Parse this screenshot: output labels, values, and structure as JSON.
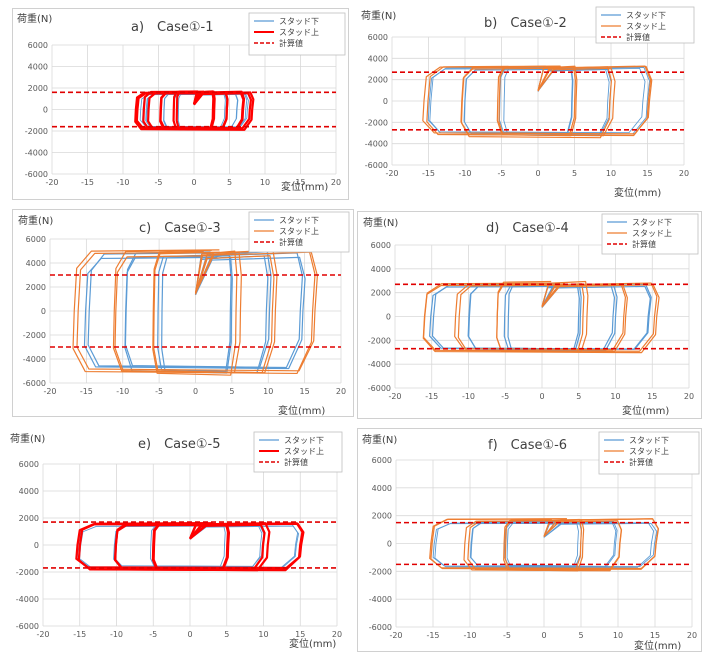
{
  "chart_data": [
    {
      "type": "line",
      "title": "a)　Case①-1",
      "ylabel": "荷重(N)",
      "xlabel": "変位(mm)",
      "xlim": [
        -20,
        20
      ],
      "ylim": [
        -6000,
        6000
      ],
      "xticks": [
        -20,
        -15,
        -10,
        -5,
        0,
        5,
        10,
        15,
        20
      ],
      "yticks": [
        -6000,
        -4000,
        -2000,
        0,
        2000,
        4000,
        6000
      ],
      "grid": true,
      "legend_position": "top-right",
      "colors": {
        "lower": "#5b9bd5",
        "upper": "#ff0000",
        "calc": "#e00000"
      },
      "series": [
        {
          "name": "スタッド下",
          "color": "#5b9bd5",
          "style": "thin",
          "cycles": [
            2.5,
            4.5,
            6.5,
            7.5
          ],
          "y_top": 1550,
          "y_bot": -1750
        },
        {
          "name": "スタッド上",
          "color": "#ff0000",
          "style": "thick",
          "cycles": [
            2.8,
            4.8,
            6.8,
            8.2
          ],
          "y_top": 1650,
          "y_bot": -1850
        },
        {
          "name": "計算値",
          "color": "#e00000",
          "style": "dashed",
          "levels": [
            1600,
            -1600
          ]
        }
      ]
    },
    {
      "type": "line",
      "title": "b)　Case①-2",
      "ylabel": "荷重(N)",
      "xlabel": "変位(mm)",
      "xlim": [
        -20,
        20
      ],
      "ylim": [
        -6000,
        6000
      ],
      "xticks": [
        -20,
        -15,
        -10,
        -5,
        0,
        5,
        10,
        15,
        20
      ],
      "yticks": [
        -6000,
        -4000,
        -2000,
        0,
        2000,
        4000,
        6000
      ],
      "grid": true,
      "legend_position": "top-right",
      "colors": {
        "lower": "#5b9bd5",
        "upper": "#ed7d31",
        "calc": "#e00000"
      },
      "series": [
        {
          "name": "スタッド下",
          "color": "#5b9bd5",
          "style": "thin",
          "cycles": [
            5,
            10,
            15
          ],
          "y_top": 3200,
          "y_bot": -3300
        },
        {
          "name": "スタッド上",
          "color": "#ed7d31",
          "style": "normal",
          "cycles": [
            5.2,
            10.3,
            15.5
          ],
          "y_top": 3400,
          "y_bot": -3400
        },
        {
          "name": "計算値",
          "color": "#e00000",
          "style": "dashed",
          "levels": [
            2700,
            -2700
          ]
        }
      ]
    },
    {
      "type": "line",
      "title": "c)　Case①-3",
      "ylabel": "荷重(N)",
      "xlabel": "変位(mm)",
      "xlim": [
        -20,
        20
      ],
      "ylim": [
        -6000,
        6000
      ],
      "xticks": [
        -20,
        -15,
        -10,
        -5,
        0,
        5,
        10,
        15,
        20
      ],
      "yticks": [
        -6000,
        -4000,
        -2000,
        0,
        2000,
        4000,
        6000
      ],
      "grid": true,
      "legend_position": "top-right",
      "colors": {
        "lower": "#5b9bd5",
        "upper": "#ed7d31",
        "calc": "#e00000"
      },
      "series": [
        {
          "name": "スタッド下",
          "color": "#5b9bd5",
          "style": "normal",
          "cycles": [
            5,
            10,
            15
          ],
          "y_top": 4900,
          "y_bot": -5100
        },
        {
          "name": "スタッド上",
          "color": "#ed7d31",
          "style": "normal",
          "cycles": [
            6,
            11,
            16.5
          ],
          "y_top": 5100,
          "y_bot": -5300
        },
        {
          "name": "計算値",
          "color": "#e00000",
          "style": "dashed",
          "levels": [
            3000,
            -3000
          ]
        }
      ]
    },
    {
      "type": "line",
      "title": "d)　Case①-4",
      "ylabel": "荷重(N)",
      "xlabel": "変位(mm)",
      "xlim": [
        -20,
        20
      ],
      "ylim": [
        -6000,
        6000
      ],
      "xticks": [
        -20,
        -15,
        -10,
        -5,
        0,
        5,
        10,
        15,
        20
      ],
      "yticks": [
        -6000,
        -4000,
        -2000,
        0,
        2000,
        4000,
        6000
      ],
      "grid": true,
      "legend_position": "top-right",
      "colors": {
        "lower": "#5b9bd5",
        "upper": "#ed7d31",
        "calc": "#e00000"
      },
      "series": [
        {
          "name": "スタッド下",
          "color": "#5b9bd5",
          "style": "normal",
          "cycles": [
            5,
            10,
            15
          ],
          "y_top": 2800,
          "y_bot": -2900
        },
        {
          "name": "スタッド上",
          "color": "#ed7d31",
          "style": "normal",
          "cycles": [
            6,
            11.5,
            16
          ],
          "y_top": 2900,
          "y_bot": -3000
        },
        {
          "name": "計算値",
          "color": "#e00000",
          "style": "dashed",
          "levels": [
            2700,
            -2700
          ]
        }
      ]
    },
    {
      "type": "line",
      "title": "e)　Case①-5",
      "ylabel": "荷重(N)",
      "xlabel": "変位(mm)",
      "xlim": [
        -20,
        20
      ],
      "ylim": [
        -6000,
        6000
      ],
      "xticks": [
        -20,
        -15,
        -10,
        -5,
        0,
        5,
        10,
        15,
        20
      ],
      "yticks": [
        -6000,
        -4000,
        -2000,
        0,
        2000,
        4000,
        6000
      ],
      "grid": true,
      "legend_position": "top-right",
      "colors": {
        "lower": "#5b9bd5",
        "upper": "#ff0000",
        "calc": "#e00000"
      },
      "series": [
        {
          "name": "スタッド下",
          "color": "#5b9bd5",
          "style": "thin",
          "cycles": [
            5,
            10,
            15
          ],
          "y_top": 1500,
          "y_bot": -1750
        },
        {
          "name": "スタッド上",
          "color": "#ff0000",
          "style": "thick",
          "cycles": [
            5.3,
            10.5,
            15.5
          ],
          "y_top": 1650,
          "y_bot": -1850
        },
        {
          "name": "計算値",
          "color": "#e00000",
          "style": "dashed",
          "levels": [
            1700,
            -1700
          ]
        }
      ]
    },
    {
      "type": "line",
      "title": "f)　Case①-6",
      "ylabel": "荷重(N)",
      "xlabel": "変位(mm)",
      "xlim": [
        -20,
        20
      ],
      "ylim": [
        -6000,
        6000
      ],
      "xticks": [
        -20,
        -15,
        -10,
        -5,
        0,
        5,
        10,
        15,
        20
      ],
      "yticks": [
        -6000,
        -4000,
        -2000,
        0,
        2000,
        4000,
        6000
      ],
      "grid": true,
      "legend_position": "top-right",
      "colors": {
        "lower": "#5b9bd5",
        "upper": "#ed7d31",
        "calc": "#e00000"
      },
      "series": [
        {
          "name": "スタッド下",
          "color": "#5b9bd5",
          "style": "thin",
          "cycles": [
            5,
            10,
            15
          ],
          "y_top": 1550,
          "y_bot": -1750
        },
        {
          "name": "スタッド上",
          "color": "#ed7d31",
          "style": "normal",
          "cycles": [
            5.3,
            10.5,
            15.5
          ],
          "y_top": 1800,
          "y_bot": -1950
        },
        {
          "name": "計算値",
          "color": "#e00000",
          "style": "dashed",
          "levels": [
            1500,
            -1500
          ]
        }
      ]
    }
  ]
}
